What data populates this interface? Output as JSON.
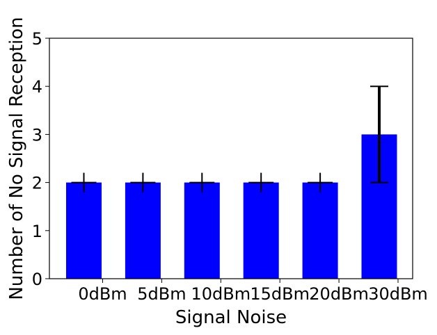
{
  "chart_data": {
    "type": "bar",
    "title": "",
    "xlabel": "Signal Noise",
    "ylabel": "Number of No Signal Reception",
    "categories": [
      "0dBm",
      "5dBm",
      "10dBm",
      "15dBm",
      "20dBm",
      "30dBm"
    ],
    "values": [
      2,
      2,
      2,
      2,
      2,
      3
    ],
    "error_bars": [
      {
        "lower": 2,
        "upper": 2
      },
      {
        "lower": 2,
        "upper": 2
      },
      {
        "lower": 2,
        "upper": 2
      },
      {
        "lower": 2,
        "upper": 2
      },
      {
        "lower": 2,
        "upper": 2
      },
      {
        "lower": 2,
        "upper": 4
      }
    ],
    "ylim": [
      0,
      5
    ],
    "yticks": [
      0,
      1,
      2,
      3,
      4,
      5
    ],
    "bar_color": "#0000ff",
    "error_color": "#000000",
    "grid": false,
    "legend": "none"
  }
}
